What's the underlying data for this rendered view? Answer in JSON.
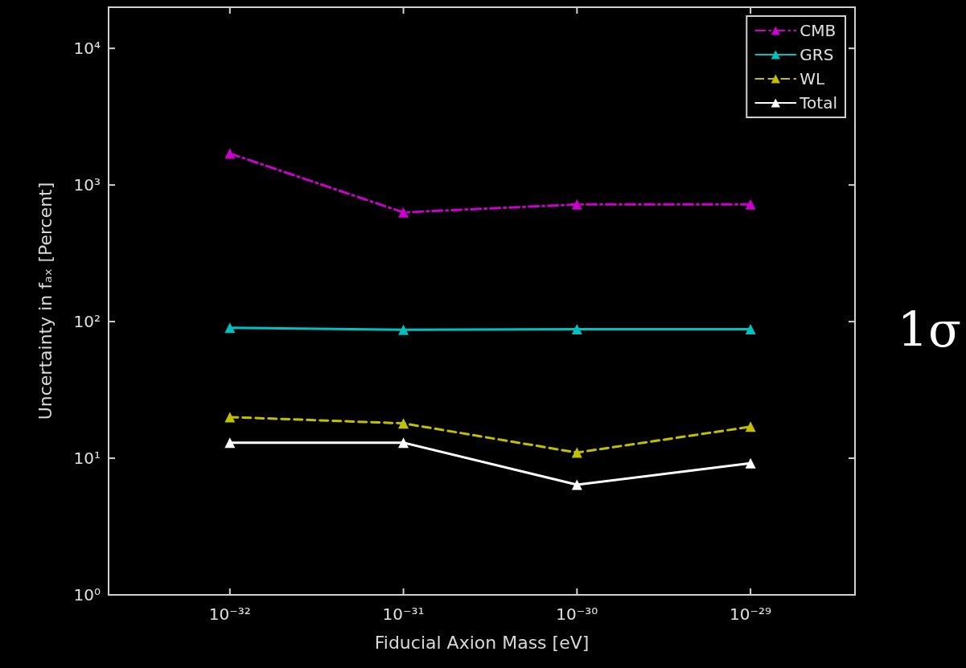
{
  "chart_data": {
    "type": "line",
    "xlabel": "Fiducial Axion Mass [eV]",
    "ylabel": "Uncertainty in fₐₓ [Percent]",
    "log": "xy",
    "grid": false,
    "legend": "top right",
    "marker": "triangle",
    "x": [
      1e-32,
      1e-31,
      1e-30,
      1e-29
    ],
    "xlim": [
      2e-33,
      4e-29
    ],
    "xticks": [
      {
        "value": 1e-32,
        "label": "10⁻³²"
      },
      {
        "value": 1e-31,
        "label": "10⁻³¹"
      },
      {
        "value": 1e-30,
        "label": "10⁻³⁰"
      },
      {
        "value": 1e-29,
        "label": "10⁻²⁹"
      }
    ],
    "ylim": [
      1,
      20000
    ],
    "yticks": [
      {
        "value": 1,
        "label": "10⁰"
      },
      {
        "value": 10,
        "label": "10¹"
      },
      {
        "value": 100,
        "label": "10²"
      },
      {
        "value": 1000,
        "label": "10³"
      },
      {
        "value": 10000,
        "label": "10⁴"
      }
    ],
    "series": [
      {
        "name": "CMB",
        "color": "#cc00cc",
        "line_style": "dashdot",
        "values": [
          1700,
          630,
          720,
          720
        ]
      },
      {
        "name": "GRS",
        "color": "#00c0c0",
        "line_style": "solid",
        "values": [
          90,
          87,
          88,
          88
        ]
      },
      {
        "name": "WL",
        "color": "#c0c000",
        "line_style": "dashed",
        "values": [
          20,
          18,
          11,
          17
        ]
      },
      {
        "name": "Total",
        "color": "#ffffff",
        "line_style": "solid",
        "values": [
          13,
          13,
          6.4,
          9.2
        ]
      }
    ],
    "annotations": [
      "1σ"
    ]
  }
}
